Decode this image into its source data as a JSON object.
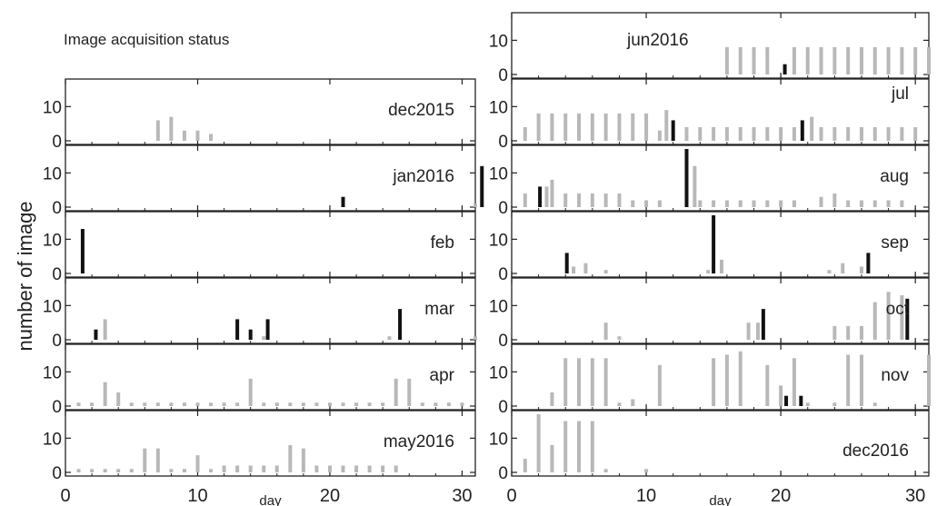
{
  "figure": {
    "title": "Image acquisition status",
    "ylabel": "number of image",
    "xlabel": "day"
  },
  "colors": {
    "grey_bar": "#b8b8b8",
    "black_bar": "#111111",
    "axis": "#222222"
  },
  "chart_data": [
    {
      "type": "bar",
      "month": "dec2015",
      "column": "left",
      "xlim": [
        0,
        31
      ],
      "ylim": [
        0,
        17
      ],
      "yticks": [
        0,
        10
      ],
      "series": [
        {
          "color": "grey",
          "x": [
            7,
            8,
            9,
            10,
            11
          ],
          "values": [
            6,
            7,
            3,
            3,
            2
          ]
        },
        {
          "color": "black",
          "x": [],
          "values": []
        }
      ]
    },
    {
      "type": "bar",
      "month": "jan2016",
      "column": "left",
      "xlim": [
        0,
        31
      ],
      "ylim": [
        0,
        17
      ],
      "yticks": [
        0,
        10
      ],
      "series": [
        {
          "color": "grey",
          "x": [
            31
          ],
          "values": [
            1
          ]
        },
        {
          "color": "black",
          "x": [
            21,
            31.5
          ],
          "values": [
            3,
            12
          ]
        }
      ]
    },
    {
      "type": "bar",
      "month": "feb",
      "column": "left",
      "xlim": [
        0,
        31
      ],
      "ylim": [
        0,
        17
      ],
      "yticks": [
        0,
        10
      ],
      "series": [
        {
          "color": "grey",
          "x": [],
          "values": []
        },
        {
          "color": "black",
          "x": [
            1.3
          ],
          "values": [
            13
          ]
        }
      ]
    },
    {
      "type": "bar",
      "month": "mar",
      "column": "left",
      "xlim": [
        0,
        31
      ],
      "ylim": [
        0,
        17
      ],
      "yticks": [
        0,
        10
      ],
      "series": [
        {
          "color": "grey",
          "x": [
            3,
            15,
            24.5,
            31
          ],
          "values": [
            6,
            1,
            1,
            1
          ]
        },
        {
          "color": "black",
          "x": [
            2.3,
            13,
            14,
            15.3,
            25.3
          ],
          "values": [
            3,
            6,
            3,
            6,
            9
          ]
        }
      ]
    },
    {
      "type": "bar",
      "month": "apr",
      "column": "left",
      "xlim": [
        0,
        31
      ],
      "ylim": [
        0,
        17
      ],
      "yticks": [
        0,
        10
      ],
      "series": [
        {
          "color": "grey",
          "x": [
            1,
            2,
            3,
            4,
            5,
            6,
            7,
            8,
            9,
            10,
            11,
            12,
            13,
            14,
            15,
            16,
            17,
            18,
            19,
            20,
            21,
            22,
            23,
            24,
            25,
            26,
            27,
            28,
            29,
            30
          ],
          "values": [
            1,
            1,
            7,
            4,
            1,
            1,
            1,
            1,
            1,
            1,
            1,
            1,
            1,
            8,
            1,
            1,
            1,
            1,
            1,
            1,
            1,
            1,
            1,
            1,
            8,
            8,
            1,
            1,
            1,
            1
          ]
        },
        {
          "color": "black",
          "x": [],
          "values": []
        }
      ]
    },
    {
      "type": "bar",
      "month": "may2016",
      "column": "left",
      "xlim": [
        0,
        31
      ],
      "ylim": [
        0,
        17
      ],
      "yticks": [
        0,
        10
      ],
      "series": [
        {
          "color": "grey",
          "x": [
            1,
            2,
            3,
            4,
            5,
            6,
            7,
            8,
            9,
            10,
            11,
            12,
            13,
            14,
            15,
            16,
            17,
            18,
            19,
            20,
            21,
            22,
            23,
            24,
            25
          ],
          "values": [
            1,
            1,
            1,
            1,
            1,
            7,
            7,
            1,
            1,
            5,
            1,
            2,
            2,
            2,
            2,
            2,
            8,
            7,
            2,
            2,
            2,
            2,
            2,
            2,
            2
          ]
        },
        {
          "color": "black",
          "x": [],
          "values": []
        }
      ]
    },
    {
      "type": "bar",
      "month": "jun2016",
      "column": "right",
      "xlim": [
        0,
        31
      ],
      "ylim": [
        0,
        17
      ],
      "yticks": [
        0,
        10
      ],
      "series": [
        {
          "color": "grey",
          "x": [
            16,
            17,
            18,
            19,
            21,
            22,
            23,
            24,
            25,
            26,
            27,
            28,
            29,
            30,
            31
          ],
          "values": [
            8,
            8,
            8,
            8,
            8,
            8,
            8,
            8,
            8,
            8,
            8,
            8,
            8,
            8,
            8
          ]
        },
        {
          "color": "black",
          "x": [
            20.3
          ],
          "values": [
            3
          ]
        }
      ]
    },
    {
      "type": "bar",
      "month": "jul",
      "column": "right",
      "xlim": [
        0,
        31
      ],
      "ylim": [
        0,
        17
      ],
      "yticks": [
        0,
        10
      ],
      "series": [
        {
          "color": "grey",
          "x": [
            1,
            2,
            3,
            4,
            5,
            6,
            7,
            8,
            9,
            10,
            11,
            11.5,
            13,
            14,
            15,
            16,
            17,
            18,
            19,
            20,
            21,
            22.3,
            23,
            24,
            25,
            26,
            27,
            28,
            29,
            30
          ],
          "values": [
            4,
            8,
            8,
            8,
            8,
            8,
            8,
            8,
            8,
            8,
            3,
            9,
            4,
            4,
            4,
            4,
            4,
            4,
            4,
            4,
            4,
            7,
            4,
            4,
            4,
            4,
            4,
            4,
            4,
            4
          ]
        },
        {
          "color": "black",
          "x": [
            12,
            21.6
          ],
          "values": [
            6,
            6
          ]
        }
      ]
    },
    {
      "type": "bar",
      "month": "aug",
      "column": "right",
      "xlim": [
        0,
        31
      ],
      "ylim": [
        0,
        17
      ],
      "yticks": [
        0,
        10
      ],
      "series": [
        {
          "color": "grey",
          "x": [
            1,
            2.6,
            3,
            4,
            5,
            6,
            7,
            8,
            9,
            10,
            11,
            13.6,
            14,
            15,
            16,
            17,
            18,
            19,
            20,
            21,
            23,
            24,
            25,
            26,
            27,
            28,
            29
          ],
          "values": [
            4,
            6,
            8,
            4,
            4,
            4,
            4,
            4,
            2,
            2,
            2,
            12,
            2,
            2,
            2,
            2,
            2,
            2,
            2,
            2,
            3,
            4,
            2,
            2,
            2,
            2,
            2
          ]
        },
        {
          "color": "black",
          "x": [
            2.1,
            13
          ],
          "values": [
            6,
            17
          ]
        }
      ]
    },
    {
      "type": "bar",
      "month": "sep",
      "column": "right",
      "xlim": [
        0,
        31
      ],
      "ylim": [
        0,
        17
      ],
      "yticks": [
        0,
        10
      ],
      "series": [
        {
          "color": "grey",
          "x": [
            4.6,
            5.5,
            7,
            14.6,
            15.6,
            23.6,
            24.6,
            26
          ],
          "values": [
            2,
            3,
            1,
            1,
            4,
            1,
            3,
            2
          ]
        },
        {
          "color": "black",
          "x": [
            4.1,
            15,
            26.5
          ],
          "values": [
            6,
            17,
            6
          ]
        }
      ]
    },
    {
      "type": "bar",
      "month": "oct",
      "column": "right",
      "xlim": [
        0,
        31
      ],
      "ylim": [
        0,
        17
      ],
      "yticks": [
        0,
        10
      ],
      "series": [
        {
          "color": "grey",
          "x": [
            7,
            8,
            17.6,
            18.3,
            24,
            25,
            26,
            27,
            28,
            29
          ],
          "values": [
            5,
            1,
            5,
            5,
            4,
            4,
            4,
            11,
            14,
            13
          ]
        },
        {
          "color": "black",
          "x": [
            18.7,
            29.4
          ],
          "values": [
            9,
            12
          ]
        }
      ]
    },
    {
      "type": "bar",
      "month": "nov",
      "column": "right",
      "xlim": [
        0,
        31
      ],
      "ylim": [
        0,
        17
      ],
      "yticks": [
        0,
        10
      ],
      "series": [
        {
          "color": "grey",
          "x": [
            3,
            4,
            5,
            6,
            7,
            8,
            9,
            11,
            15,
            16,
            17,
            19,
            20,
            21,
            22,
            24,
            25,
            26,
            27,
            31
          ],
          "values": [
            4,
            14,
            14,
            14,
            14,
            1,
            2,
            12,
            14,
            15,
            16,
            12,
            6,
            14,
            1,
            1,
            15,
            15,
            1,
            15
          ]
        },
        {
          "color": "black",
          "x": [
            20.4,
            21.5
          ],
          "values": [
            3,
            3
          ]
        }
      ]
    },
    {
      "type": "bar",
      "month": "dec2016",
      "column": "right",
      "xlim": [
        0,
        31
      ],
      "ylim": [
        0,
        17
      ],
      "yticks": [
        0,
        10
      ],
      "series": [
        {
          "color": "grey",
          "x": [
            1,
            2,
            3,
            4,
            5,
            6,
            7,
            10
          ],
          "values": [
            4,
            17,
            8,
            15,
            15,
            15,
            1,
            1
          ]
        },
        {
          "color": "black",
          "x": [],
          "values": []
        }
      ]
    }
  ],
  "xticks": [
    0,
    10,
    20,
    30
  ]
}
